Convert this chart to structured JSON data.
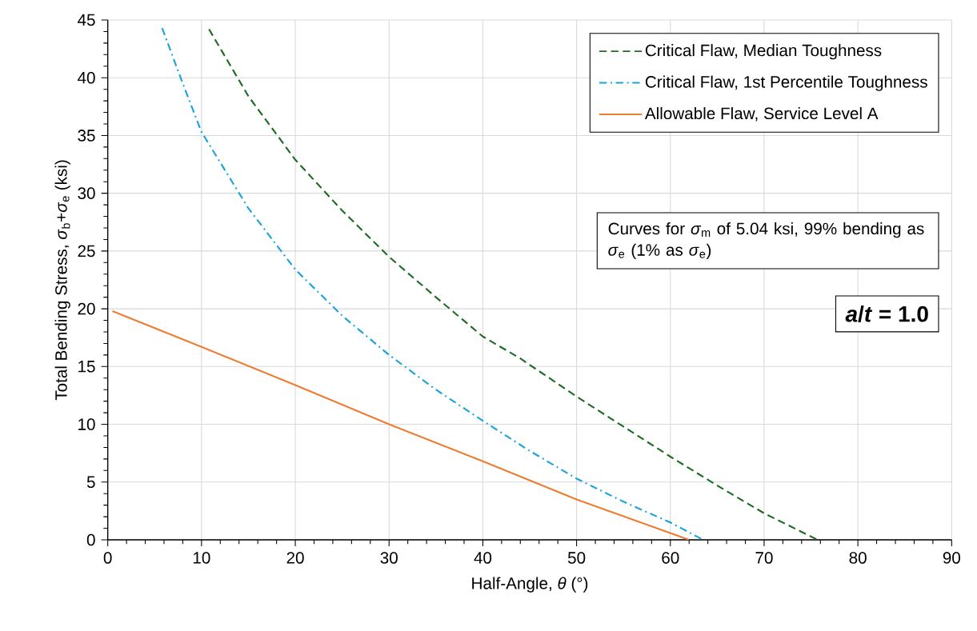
{
  "chart_data": {
    "type": "line",
    "xlabel": "Half-Angle, *θ* (°)",
    "ylabel": "Total Bending Stress, *σ*$_{b}$+*σ*$_{e}$ (ksi)",
    "xlim": [
      0,
      90
    ],
    "ylim": [
      0,
      45
    ],
    "xticks": [
      0,
      10,
      20,
      30,
      40,
      50,
      60,
      70,
      80,
      90
    ],
    "yticks": [
      0,
      5,
      10,
      15,
      20,
      25,
      30,
      35,
      40,
      45
    ],
    "grid": true,
    "legend": "top right",
    "marker": "none",
    "series": [
      {
        "name": "Critical Flaw, Median Toughness",
        "color": "#1e6b24",
        "line_style": "dashed",
        "x": [
          10.8,
          15,
          20,
          25,
          30,
          35,
          40,
          44,
          50,
          55,
          60,
          65,
          70,
          75.7
        ],
        "values": [
          44.2,
          38.4,
          32.9,
          28.5,
          24.5,
          21.0,
          17.6,
          15.7,
          12.4,
          9.8,
          7.2,
          4.7,
          2.3,
          0
        ]
      },
      {
        "name": "Critical Flaw, 1st Percentile Toughness",
        "color": "#1aa3dd",
        "line_style": "dashdot",
        "x": [
          5.8,
          8,
          10,
          15,
          20,
          25,
          30,
          35,
          40,
          45,
          50,
          55,
          60,
          63.5
        ],
        "values": [
          44.3,
          39.5,
          35.3,
          28.7,
          23.4,
          19.4,
          16.0,
          13.0,
          10.3,
          7.7,
          5.3,
          3.3,
          1.5,
          0
        ]
      },
      {
        "name": "Allowable Flaw, Service Level A",
        "color": "#ed7d31",
        "line_style": "solid",
        "x": [
          0.5,
          10,
          20,
          30,
          40,
          50,
          62
        ],
        "values": [
          19.8,
          16.7,
          13.4,
          10.0,
          6.8,
          3.5,
          0
        ]
      }
    ],
    "annotations": [
      "Curves for *σ*$_{m}$ of 5.04 ksi, 99% bending as *σ*$_{e}$ (1% as *σ*$_{e}$)",
      "*a*/*t* = 1.0"
    ]
  }
}
